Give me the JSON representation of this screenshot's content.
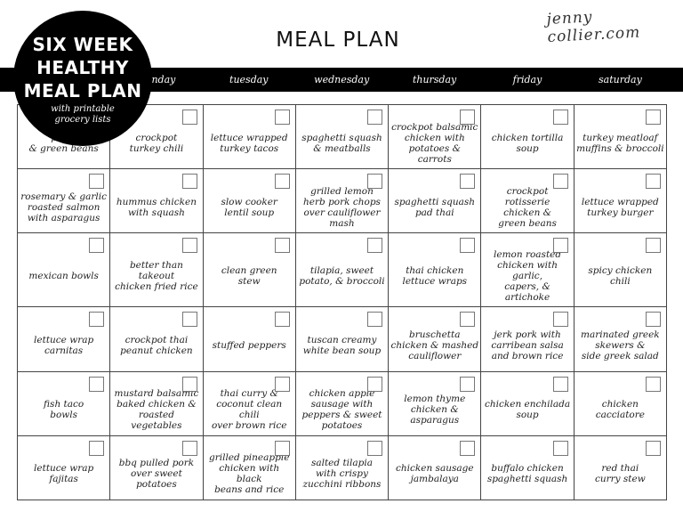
{
  "header": {
    "title": "MEAL PLAN",
    "logo": "jenny collier.com"
  },
  "badge": {
    "title": "SIX WEEK\nHEALTHY\nMEAL PLAN",
    "subtitle": "with printable\ngrocery lists"
  },
  "days": [
    "",
    "monday",
    "tuesday",
    "wednesday",
    "thursday",
    "friday",
    "saturday"
  ],
  "weeks": [
    [
      "pesto\n& green beans",
      "crockpot\nturkey chili",
      "lettuce wrapped\nturkey tacos",
      "spaghetti squash\n& meatballs",
      "crockpot balsamic\nchicken with\npotatoes & carrots",
      "chicken tortilla\nsoup",
      "turkey meatloaf\nmuffins & broccoli"
    ],
    [
      "rosemary & garlic\nroasted salmon\nwith asparagus",
      "hummus chicken\nwith squash",
      "slow cooker\nlentil soup",
      "grilled lemon\nherb pork chops\nover cauliflower\nmash",
      "spaghetti squash\npad thai",
      "crockpot rotisserie\nchicken &\ngreen beans",
      "lettuce wrapped\nturkey burger"
    ],
    [
      "mexican bowls",
      "better than takeout\nchicken fried rice",
      "clean green\nstew",
      "tilapia, sweet\npotato, & broccoli",
      "thai chicken\nlettuce wraps",
      "lemon roasted\nchicken with garlic,\ncapers, & artichoke",
      "spicy chicken\nchili"
    ],
    [
      "lettuce wrap\ncarnitas",
      "crockpot thai\npeanut chicken",
      "stuffed peppers",
      "tuscan creamy\nwhite bean soup",
      "bruschetta\nchicken & mashed\ncauliflower",
      "jerk pork with\ncarribean salsa\nand brown rice",
      "marinated greek\nskewers &\nside greek salad"
    ],
    [
      "fish taco\nbowls",
      "mustard balsamic\nbaked chicken &\nroasted vegetables",
      "thai curry &\ncoconut clean chili\nover brown rice",
      "chicken apple\nsausage with\npeppers & sweet\npotatoes",
      "lemon thyme\nchicken &\nasparagus",
      "chicken enchilada\nsoup",
      "chicken\ncacciatore"
    ],
    [
      "lettuce wrap\nfajitas",
      "bbq pulled pork\nover sweet potatoes",
      "grilled pineapple\nchicken with black\nbeans and rice",
      "salted tilapia\nwith crispy\nzucchini ribbons",
      "chicken sausage\njambalaya",
      "buffalo chicken\nspaghetti squash",
      "red thai\ncurry stew"
    ]
  ]
}
